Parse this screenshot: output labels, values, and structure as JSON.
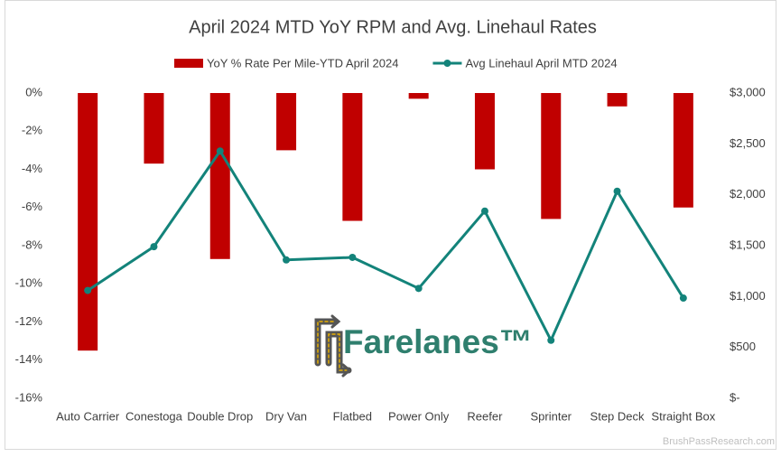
{
  "chart_data": {
    "type": "bar-line",
    "title": "April 2024 MTD YoY RPM and Avg. Linehaul Rates",
    "categories": [
      "Auto Carrier",
      "Conestoga",
      "Double Drop",
      "Dry Van",
      "Flatbed",
      "Power Only",
      "Reefer",
      "Sprinter",
      "Step Deck",
      "Straight Box"
    ],
    "series": [
      {
        "name": "YoY % Rate Per Mile-YTD April 2024",
        "type": "bar",
        "color": "#c00000",
        "values": [
          -13.5,
          -3.7,
          -8.7,
          -3.0,
          -6.7,
          -0.3,
          -4.0,
          -6.6,
          -0.7,
          -6.0
        ]
      },
      {
        "name": "Avg Linehaul April MTD 2024",
        "type": "line",
        "axis": "y2",
        "color": "#13837a",
        "values": [
          1060,
          1490,
          2430,
          1360,
          1385,
          1080,
          1840,
          570,
          2035,
          985
        ]
      }
    ],
    "ylim": [
      -16,
      0
    ],
    "yticks": [
      {
        "value": 0,
        "label": "0%"
      },
      {
        "value": -2,
        "label": "-2%"
      },
      {
        "value": -4,
        "label": "-4%"
      },
      {
        "value": -6,
        "label": "-6%"
      },
      {
        "value": -8,
        "label": "-8%"
      },
      {
        "value": -10,
        "label": "-10%"
      },
      {
        "value": -12,
        "label": "-12%"
      },
      {
        "value": -14,
        "label": "-14%"
      },
      {
        "value": -16,
        "label": "-16%"
      }
    ],
    "y2lim": [
      0,
      3000
    ],
    "y2ticks": [
      {
        "value": 0,
        "label": "$-"
      },
      {
        "value": 500,
        "label": "$500"
      },
      {
        "value": 1000,
        "label": "$1,000"
      },
      {
        "value": 1500,
        "label": "$1,500"
      },
      {
        "value": 2000,
        "label": "$2,000"
      },
      {
        "value": 2500,
        "label": "$2,500"
      },
      {
        "value": 3000,
        "label": "$3,000"
      }
    ],
    "grid": false,
    "legend": "top",
    "annotations": [
      "Farelanes™",
      "BrushPassResearch.com"
    ]
  }
}
